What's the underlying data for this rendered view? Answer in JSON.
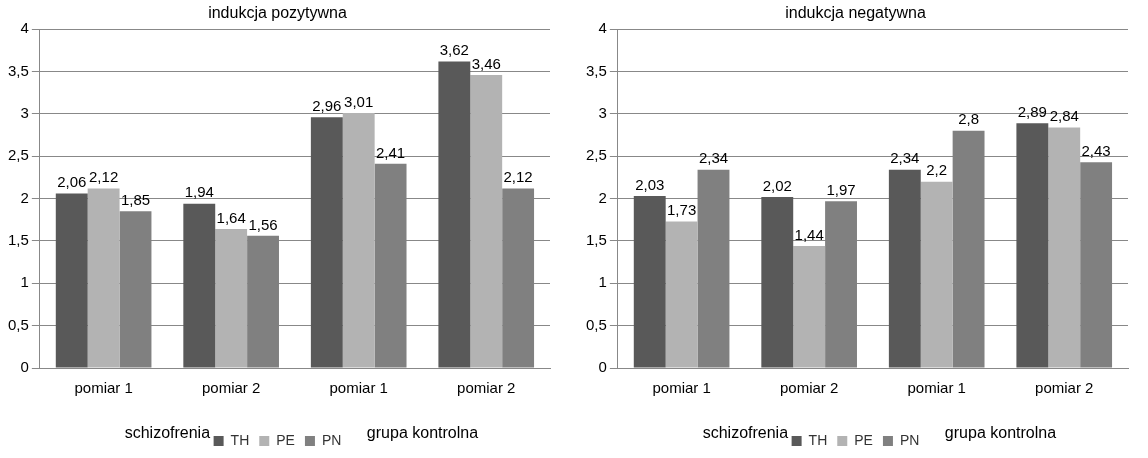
{
  "chart_data": [
    {
      "type": "bar",
      "title": "indukcja pozytywna",
      "categories": [
        "pomiar 1",
        "pomiar 2",
        "pomiar 1",
        "pomiar 2"
      ],
      "series": [
        {
          "name": "TH",
          "color": "#595959",
          "values": [
            2.06,
            1.94,
            2.96,
            3.62
          ],
          "value_labels": [
            "2,06",
            "1,94",
            "2,96",
            "3,62"
          ]
        },
        {
          "name": "PE",
          "color": "#b3b3b3",
          "values": [
            2.12,
            1.64,
            3.01,
            3.46
          ],
          "value_labels": [
            "2,12",
            "1,64",
            "3,01",
            "3,46"
          ]
        },
        {
          "name": "PN",
          "color": "#808080",
          "values": [
            1.85,
            1.56,
            2.41,
            2.12
          ],
          "value_labels": [
            "1,85",
            "1,56",
            "2,41",
            "2,12"
          ]
        }
      ],
      "ylim": [
        0,
        4
      ],
      "yticks": [
        0,
        {
          "value": 0.5,
          "label": "0,5"
        },
        1,
        {
          "value": 1.5,
          "label": "1,5"
        },
        2,
        {
          "value": 2.5,
          "label": "2,5"
        },
        3,
        {
          "value": 3.5,
          "label": "3,5"
        },
        4
      ],
      "grid": "y",
      "legend": "bottom",
      "annotations": [
        "schizofrenia",
        "grupa kontrolna"
      ]
    },
    {
      "type": "bar",
      "title": "indukcja negatywna",
      "categories": [
        "pomiar 1",
        "pomiar 2",
        "pomiar 1",
        "pomiar 2"
      ],
      "series": [
        {
          "name": "TH",
          "color": "#595959",
          "values": [
            2.03,
            2.02,
            2.34,
            2.89
          ],
          "value_labels": [
            "2,03",
            "2,02",
            "2,34",
            "2,89"
          ]
        },
        {
          "name": "PE",
          "color": "#b3b3b3",
          "values": [
            1.73,
            1.44,
            2.2,
            2.84
          ],
          "value_labels": [
            "1,73",
            "1,44",
            "2,2",
            "2,84"
          ]
        },
        {
          "name": "PN",
          "color": "#808080",
          "values": [
            2.34,
            1.97,
            2.8,
            2.43
          ],
          "value_labels": [
            "2,34",
            "1,97",
            "2,8",
            "2,43"
          ]
        }
      ],
      "ylim": [
        0,
        4
      ],
      "yticks": [
        0,
        {
          "value": 0.5,
          "label": "0,5"
        },
        1,
        {
          "value": 1.5,
          "label": "1,5"
        },
        2,
        {
          "value": 2.5,
          "label": "2,5"
        },
        3,
        {
          "value": 3.5,
          "label": "3,5"
        },
        4
      ],
      "grid": "y",
      "legend": "bottom",
      "annotations": [
        "schizofrenia",
        "grupa kontrolna"
      ]
    }
  ]
}
